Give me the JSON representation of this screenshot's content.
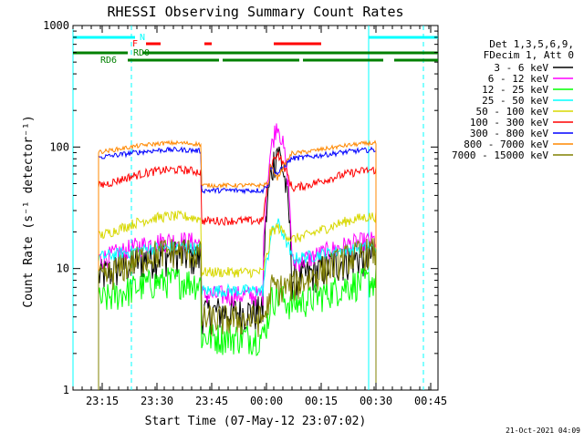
{
  "chart_data": {
    "type": "line",
    "title": "RHESSI Observing Summary Count Rates",
    "xlabel": "Start Time (07-May-12 23:07:02)",
    "ylabel": "Count Rate (s⁻¹ detector⁻¹)",
    "y_scale": "log",
    "ylim": [
      1,
      1000
    ],
    "xlim_minutes": [
      0,
      100
    ],
    "x_ticks": [
      {
        "label": "23:15",
        "minute": 8
      },
      {
        "label": "23:30",
        "minute": 23
      },
      {
        "label": "23:45",
        "minute": 38
      },
      {
        "label": "00:00",
        "minute": 53
      },
      {
        "label": "00:15",
        "minute": 68
      },
      {
        "label": "00:30",
        "minute": 83
      },
      {
        "label": "00:45",
        "minute": 98
      }
    ],
    "y_ticks": [
      {
        "label": "1",
        "value": 1
      },
      {
        "label": "10",
        "value": 10
      },
      {
        "label": "100",
        "value": 100
      },
      {
        "label": "1000",
        "value": 1000
      }
    ],
    "legend_header": [
      "Det 1,3,5,6,9,",
      "FDecim 1, Att 0"
    ],
    "legend_position": "right",
    "series": [
      {
        "name": "3 - 6 keV",
        "color": "#000000",
        "base": 8,
        "day_amp": 5,
        "noise": 0.35,
        "flare_peak": 100
      },
      {
        "name": "6 - 12 keV",
        "color": "#ff00ff",
        "base": 11,
        "day_amp": 6,
        "noise": 0.2,
        "flare_peak": 160
      },
      {
        "name": "12 - 25 keV",
        "color": "#00ff00",
        "base": 5,
        "day_amp": 3,
        "noise": 0.3,
        "flare_peak": 6
      },
      {
        "name": "25 - 50 keV",
        "color": "#00ffff",
        "base": 12,
        "day_amp": 3,
        "noise": 0.12,
        "flare_peak": 24
      },
      {
        "name": "50 - 100 keV",
        "color": "#d8d800",
        "base": 17,
        "day_amp": 10,
        "noise": 0.1,
        "flare_peak": 22
      },
      {
        "name": "100 - 300 keV",
        "color": "#ff0000",
        "base": 45,
        "day_amp": 20,
        "noise": 0.08,
        "flare_peak": 90
      },
      {
        "name": "300 - 800 keV",
        "color": "#0000ff",
        "base": 80,
        "day_amp": 15,
        "noise": 0.05,
        "flare_peak": 60
      },
      {
        "name": "800 - 7000 keV",
        "color": "#ff8800",
        "base": 88,
        "day_amp": 20,
        "noise": 0.04,
        "flare_peak": 55
      },
      {
        "name": "7000 - 15000 keV",
        "color": "#808000",
        "base": 7,
        "day_amp": 7,
        "noise": 0.3,
        "flare_peak": 7
      }
    ],
    "gaps": [
      [
        35,
        54
      ]
    ],
    "flare_window": [
      52,
      60
    ],
    "vertical_markers": [
      {
        "minute": 0,
        "style": "solid",
        "color": "#00ffff"
      },
      {
        "minute": 16,
        "style": "dashed",
        "color": "#00ffff"
      },
      {
        "minute": 81,
        "style": "solid",
        "color": "#00ffff"
      },
      {
        "minute": 96,
        "style": "dashed",
        "color": "#00ffff"
      }
    ],
    "status_bars": [
      {
        "label": "N",
        "color": "#00ffff",
        "segments": [
          [
            0,
            17
          ],
          [
            81,
            100
          ]
        ]
      },
      {
        "label": "F",
        "color": "#ff0000",
        "segments": [
          [
            20,
            24
          ],
          [
            36,
            38
          ],
          [
            55,
            68
          ]
        ]
      },
      {
        "label": "RD0",
        "color": "#008000",
        "segments": [
          [
            0,
            15
          ],
          [
            19,
            100
          ]
        ]
      },
      {
        "label": "RD6",
        "color": "#008000",
        "segments": [
          [
            15,
            40
          ],
          [
            41,
            62
          ],
          [
            63,
            85
          ],
          [
            88,
            100
          ]
        ]
      }
    ],
    "timestamp": "21-Oct-2021 04:09"
  }
}
